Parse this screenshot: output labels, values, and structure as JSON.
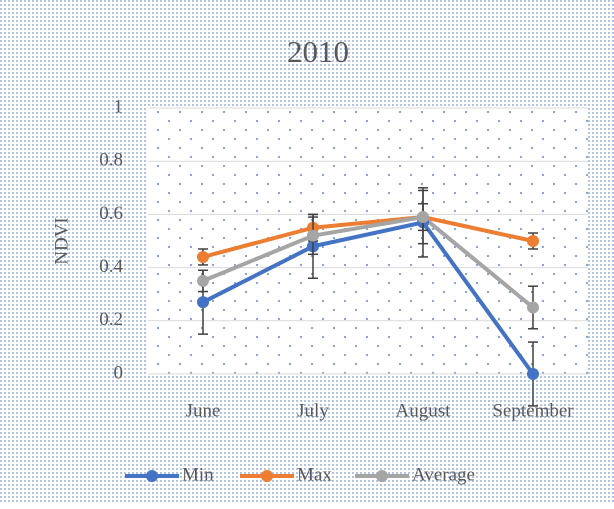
{
  "chart_data": {
    "type": "line",
    "title": "2010",
    "y_label": "NDVI",
    "categories": [
      "June",
      "July",
      "August",
      "September"
    ],
    "series": [
      {
        "name": "Min",
        "color": "#4472c4",
        "values": [
          0.27,
          0.48,
          0.57,
          0
        ],
        "errors": [
          0.12,
          0.12,
          0.13,
          0.12
        ]
      },
      {
        "name": "Max",
        "color": "#ed7d31",
        "values": [
          0.44,
          0.55,
          0.59,
          0.5
        ],
        "errors": [
          0.03,
          0.05,
          0.05,
          0.03
        ]
      },
      {
        "name": "Average",
        "color": "#a5a5a5",
        "values": [
          0.35,
          0.52,
          0.59,
          0.25
        ],
        "errors": [
          0.04,
          0.07,
          0.1,
          0.08
        ]
      }
    ],
    "ylim": [
      0,
      1
    ],
    "yticks": [
      0,
      0.2,
      0.4,
      0.6,
      0.8,
      1
    ],
    "grid": true,
    "legend": "bottom"
  }
}
